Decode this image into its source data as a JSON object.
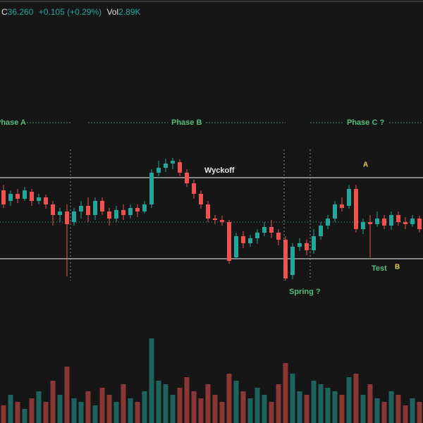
{
  "header": {
    "close_label": "C",
    "close": "36.260",
    "change": "+0.105 (+0.29%)",
    "volume_label": "Vol",
    "volume": "2.89K"
  },
  "chart_data": {
    "type": "candlestick",
    "up_color": "#26a69a",
    "down_color": "#ef5350",
    "ylim": [
      0,
      460
    ],
    "open": [
      190,
      175,
      185,
      178,
      188,
      175,
      180,
      170,
      155,
      160,
      145,
      160,
      168,
      155,
      175,
      160,
      150,
      162,
      155,
      165,
      160,
      170,
      215,
      222,
      228,
      230,
      215,
      200,
      185,
      170,
      150,
      148,
      145,
      95,
      125,
      115,
      122,
      130,
      138,
      130,
      120,
      70,
      110,
      115,
      105,
      125,
      140,
      150,
      170,
      168,
      192,
      135,
      145,
      142,
      150,
      140,
      155,
      145,
      142,
      150
    ],
    "high": [
      198,
      190,
      192,
      195,
      192,
      185,
      184,
      175,
      165,
      170,
      165,
      175,
      180,
      180,
      180,
      165,
      168,
      170,
      170,
      170,
      175,
      220,
      232,
      235,
      236,
      234,
      220,
      205,
      190,
      175,
      155,
      154,
      148,
      130,
      132,
      127,
      135,
      145,
      148,
      135,
      125,
      115,
      122,
      120,
      135,
      145,
      155,
      175,
      180,
      198,
      198,
      150,
      155,
      160,
      155,
      160,
      160,
      152,
      155,
      154
    ],
    "low": [
      165,
      168,
      172,
      175,
      168,
      170,
      164,
      140,
      145,
      68,
      140,
      150,
      145,
      148,
      155,
      140,
      145,
      148,
      150,
      152,
      157,
      165,
      210,
      216,
      220,
      210,
      195,
      178,
      164,
      145,
      142,
      140,
      86,
      92,
      108,
      110,
      114,
      125,
      122,
      112,
      62,
      64,
      104,
      98,
      100,
      120,
      135,
      145,
      160,
      164,
      130,
      128,
      95,
      138,
      135,
      134,
      140,
      135,
      138,
      130
    ],
    "close": [
      170,
      185,
      178,
      190,
      175,
      180,
      170,
      155,
      160,
      142,
      160,
      168,
      155,
      175,
      160,
      150,
      162,
      155,
      165,
      160,
      170,
      215,
      222,
      228,
      232,
      215,
      200,
      185,
      170,
      150,
      148,
      145,
      90,
      125,
      115,
      122,
      130,
      138,
      130,
      120,
      65,
      110,
      115,
      105,
      125,
      140,
      150,
      170,
      165,
      192,
      135,
      145,
      142,
      150,
      140,
      155,
      145,
      142,
      150,
      135
    ],
    "volume": [
      25,
      40,
      30,
      20,
      35,
      45,
      30,
      60,
      40,
      80,
      35,
      30,
      45,
      25,
      50,
      40,
      30,
      55,
      35,
      30,
      45,
      120,
      60,
      55,
      40,
      50,
      65,
      45,
      35,
      55,
      40,
      30,
      70,
      60,
      45,
      35,
      50,
      40,
      30,
      55,
      85,
      70,
      45,
      40,
      60,
      55,
      50,
      45,
      40,
      65,
      70,
      40,
      55,
      35,
      30,
      45,
      40,
      25,
      35,
      30
    ],
    "volume_ylim": [
      0,
      130
    ],
    "levels": [
      208,
      93
    ],
    "price_line": 145,
    "annotations": [
      "Phase A",
      "Phase B",
      "Phase C ?",
      "Wyckoff",
      "A",
      "B",
      "Test",
      "Spring ?"
    ]
  }
}
